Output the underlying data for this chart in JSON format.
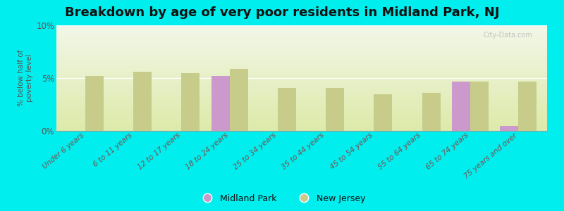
{
  "title": "Breakdown by age of very poor residents in Midland Park, NJ",
  "ylabel": "% below half of\npoverty level",
  "categories": [
    "Under 6 years",
    "6 to 11 years",
    "12 to 17 years",
    "18 to 24 years",
    "25 to 34 years",
    "35 to 44 years",
    "45 to 54 years",
    "55 to 64 years",
    "65 to 74 years",
    "75 years and over"
  ],
  "nj_values": [
    5.2,
    5.6,
    5.5,
    5.85,
    4.1,
    4.1,
    3.5,
    3.6,
    4.7,
    4.7
  ],
  "mp_values": [
    0,
    0,
    0,
    5.2,
    0,
    0,
    0,
    0,
    4.7,
    0.5
  ],
  "nj_color": "#c8cc8a",
  "mp_color": "#cc99cc",
  "background_color": "#00eeee",
  "grad_top": "#f2f7e8",
  "grad_bottom": "#deeaaa",
  "ylim": [
    0,
    10
  ],
  "yticks": [
    0,
    5,
    10
  ],
  "ytick_labels": [
    "0%",
    "5%",
    "10%"
  ],
  "bar_width": 0.38,
  "title_fontsize": 13,
  "legend_mp": "Midland Park",
  "legend_nj": "New Jersey",
  "watermark": "City-Data.com"
}
